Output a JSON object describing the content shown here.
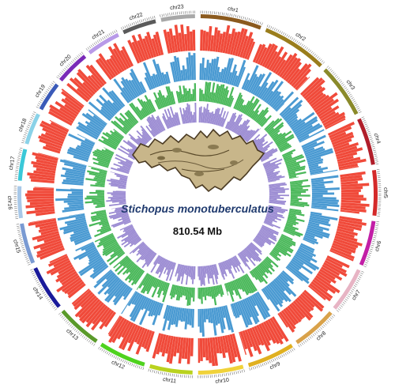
{
  "species": "Stichopus monotuberculatus",
  "genome_size": "810.54 Mb",
  "chromosomes": [
    {
      "label": "chr1",
      "color": "#8b5a1e"
    },
    {
      "label": "chr2",
      "color": "#9a7d1c"
    },
    {
      "label": "chr3",
      "color": "#8a8a2a"
    },
    {
      "label": "chr4",
      "color": "#b01e2a"
    },
    {
      "label": "chr5",
      "color": "#d42a2a"
    },
    {
      "label": "chr6",
      "color": "#c21fa6"
    },
    {
      "label": "chr7",
      "color": "#e7b4c4"
    },
    {
      "label": "chr8",
      "color": "#d9a24a"
    },
    {
      "label": "chr9",
      "color": "#e0b020"
    },
    {
      "label": "chr10",
      "color": "#f0d23a"
    },
    {
      "label": "chr11",
      "color": "#b9d21e"
    },
    {
      "label": "chr12",
      "color": "#4fd21e"
    },
    {
      "label": "chr13",
      "color": "#5a9a2a"
    },
    {
      "label": "chr14",
      "color": "#1a1a9a"
    },
    {
      "label": "chr15",
      "color": "#7a9ad2"
    },
    {
      "label": "chr16",
      "color": "#a8c8e8"
    },
    {
      "label": "chr17",
      "color": "#3ac8d8"
    },
    {
      "label": "chr18",
      "color": "#8ad2e8"
    },
    {
      "label": "chr19",
      "color": "#3a5ab8"
    },
    {
      "label": "chr20",
      "color": "#7a2ab8"
    },
    {
      "label": "chr21",
      "color": "#b89ae8"
    },
    {
      "label": "chr22",
      "color": "#5a5a5a"
    },
    {
      "label": "chr23",
      "color": "#a8a8a8"
    }
  ],
  "tracks": [
    {
      "color": "#f04a3a"
    },
    {
      "color": "#4a9ad2"
    },
    {
      "color": "#4ab85a"
    },
    {
      "color": "#9a8ad2"
    }
  ]
}
